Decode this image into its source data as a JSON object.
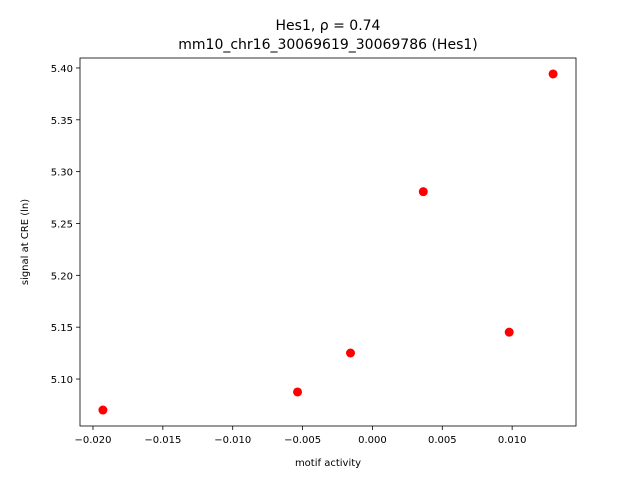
{
  "chart_data": {
    "type": "scatter",
    "title": "Hes1, ρ = 0.74",
    "subtitle": "mm10_chr16_30069619_30069786 (Hes1)",
    "x_label": "motif activity",
    "y_label": "signal at CRE (ln)",
    "color": "#ff0000",
    "x": [
      -0.01929,
      -0.00536,
      -0.00157,
      0.00364,
      0.00979,
      0.01293
    ],
    "values": [
      5.0701,
      5.0875,
      5.1251,
      5.2807,
      5.1452,
      5.3942
    ],
    "xlim": [
      -0.02093,
      0.01457
    ],
    "ylim": [
      5.0547,
      5.4096
    ],
    "xticks": [
      {
        "value": -0.02,
        "label": "−0.020"
      },
      {
        "value": -0.015,
        "label": "−0.015"
      },
      {
        "value": -0.01,
        "label": "−0.010"
      },
      {
        "value": -0.005,
        "label": "−0.005"
      },
      {
        "value": 0,
        "label": "0.000"
      },
      0.005,
      {
        "value": 0.01,
        "label": "0.010"
      }
    ],
    "yticks": [
      {
        "value": 5.1,
        "label": "5.10"
      },
      5.15,
      {
        "value": 5.2,
        "label": "5.20"
      },
      5.25,
      {
        "value": 5.3,
        "label": "5.30"
      },
      5.35,
      {
        "value": 5.4,
        "label": "5.40"
      }
    ]
  }
}
